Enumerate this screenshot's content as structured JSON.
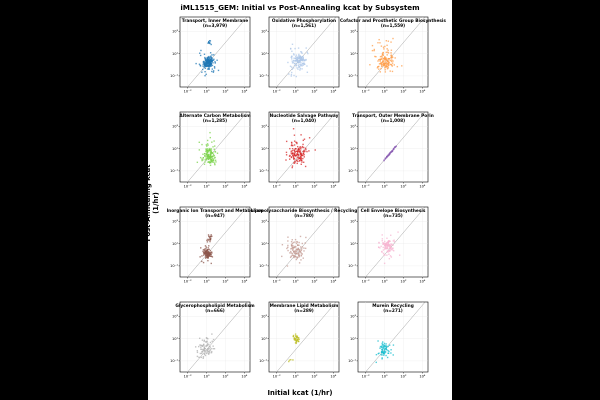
{
  "figure": {
    "title": "iML1515_GEM: Initial vs Post-Annealing kcat by Subsystem",
    "xlabel": "Initial kcat (1/hr)",
    "ylabel": "Post-Annealing kcat (1/hr)"
  },
  "chart_data": [
    {
      "type": "scatter",
      "title": "Transport, Inner Membrane",
      "subtitle": "(n=3,979)",
      "color": "#1f77b4",
      "xscale": "log",
      "yscale": "log",
      "xticks": [
        "10⁻²",
        "10⁰",
        "10²",
        "10⁴"
      ],
      "yticks": [
        "10³",
        "10¹",
        "10⁻¹"
      ],
      "diagonal": true,
      "grid": true,
      "clusters": [
        {
          "x": [
            0.3,
            8
          ],
          "y": [
            0.3,
            8
          ],
          "n": 140
        },
        {
          "x": [
            0.05,
            40
          ],
          "y": [
            0.05,
            40
          ],
          "n": 50
        },
        {
          "x": [
            1,
            5
          ],
          "y": [
            40,
            200
          ],
          "n": 10
        }
      ]
    },
    {
      "type": "scatter",
      "title": "Oxidative Phosphorylation",
      "subtitle": "(n=1,561)",
      "color": "#aec7e8",
      "xscale": "log",
      "yscale": "log",
      "xticks": [
        "10⁻²",
        "10⁰",
        "10²",
        "10⁴"
      ],
      "yticks": [
        "10³",
        "10¹",
        "10⁻¹"
      ],
      "diagonal": true,
      "grid": true,
      "clusters": [
        {
          "x": [
            0.3,
            20
          ],
          "y": [
            0.3,
            20
          ],
          "n": 90
        },
        {
          "x": [
            0.02,
            100
          ],
          "y": [
            0.02,
            200
          ],
          "n": 50
        }
      ]
    },
    {
      "type": "scatter",
      "title": "Cofactor and Prosthetic Group Biosynthesis",
      "subtitle": "(n=1,559)",
      "color": "#ff9e4a",
      "xscale": "log",
      "yscale": "log",
      "xticks": [
        "10⁻²",
        "10⁰",
        "10²",
        "10⁴"
      ],
      "yticks": [
        "10³",
        "10¹",
        "10⁻¹"
      ],
      "diagonal": true,
      "grid": true,
      "clusters": [
        {
          "x": [
            0.1,
            20
          ],
          "y": [
            0.1,
            20
          ],
          "n": 90
        },
        {
          "x": [
            0.01,
            100
          ],
          "y": [
            0.05,
            1000
          ],
          "n": 60
        }
      ]
    },
    {
      "type": "scatter",
      "title": "Alternate Carbon Metabolism",
      "subtitle": "(n=1,285)",
      "color": "#7bd34b",
      "xscale": "log",
      "yscale": "log",
      "xticks": [
        "10⁻²",
        "10⁰",
        "10²",
        "10⁴"
      ],
      "yticks": [
        "10³",
        "10¹",
        "10⁻¹"
      ],
      "diagonal": true,
      "grid": true,
      "clusters": [
        {
          "x": [
            0.2,
            20
          ],
          "y": [
            0.2,
            30
          ],
          "n": 100
        },
        {
          "x": [
            0.02,
            100
          ],
          "y": [
            0.05,
            500
          ],
          "n": 40
        }
      ]
    },
    {
      "type": "scatter",
      "title": "Nucleotide Salvage Pathway",
      "subtitle": "(n=1,040)",
      "color": "#d62728",
      "xscale": "log",
      "yscale": "log",
      "xticks": [
        "10⁻²",
        "10⁰",
        "10²",
        "10⁴"
      ],
      "yticks": [
        "10³",
        "10¹",
        "10⁻¹"
      ],
      "diagonal": true,
      "grid": true,
      "clusters": [
        {
          "x": [
            0.1,
            30
          ],
          "y": [
            0.1,
            100
          ],
          "n": 100
        },
        {
          "x": [
            0.01,
            200
          ],
          "y": [
            0.05,
            1000
          ],
          "n": 40
        }
      ]
    },
    {
      "type": "scatter",
      "title": "Transport, Outer Membrane Porin",
      "subtitle": "(n=1,008)",
      "color": "#8c5fb4",
      "xscale": "log",
      "yscale": "log",
      "xticks": [
        "10⁻²",
        "10⁰",
        "10²",
        "10⁴"
      ],
      "yticks": [
        "10³",
        "10¹",
        "10⁻¹"
      ],
      "diagonal": true,
      "grid": true,
      "clusters": [
        {
          "x": [
            0.5,
            30
          ],
          "y": [
            0.5,
            30
          ],
          "n": 60,
          "tight": true
        }
      ]
    },
    {
      "type": "scatter",
      "title": "Inorganic Ion Transport and Metabolism",
      "subtitle": "(n=947)",
      "color": "#8c564b",
      "xscale": "log",
      "yscale": "log",
      "xticks": [
        "10⁻²",
        "10⁰",
        "10²",
        "10⁴"
      ],
      "yticks": [
        "10³",
        "10¹",
        "10⁻¹"
      ],
      "diagonal": true,
      "grid": true,
      "clusters": [
        {
          "x": [
            0.3,
            5
          ],
          "y": [
            0.3,
            5
          ],
          "n": 90
        },
        {
          "x": [
            1,
            5
          ],
          "y": [
            10,
            100
          ],
          "n": 20
        },
        {
          "x": [
            0.05,
            20
          ],
          "y": [
            0.05,
            20
          ],
          "n": 20
        }
      ]
    },
    {
      "type": "scatter",
      "title": "Lipopolysaccharide Biosynthesis / Recycling",
      "subtitle": "(n=780)",
      "color": "#c49c94",
      "xscale": "log",
      "yscale": "log",
      "xticks": [
        "10⁻²",
        "10⁰",
        "10²",
        "10⁴"
      ],
      "yticks": [
        "10³",
        "10¹",
        "10⁻¹"
      ],
      "diagonal": true,
      "grid": true,
      "clusters": [
        {
          "x": [
            0.1,
            20
          ],
          "y": [
            0.1,
            50
          ],
          "n": 80
        },
        {
          "x": [
            0.01,
            100
          ],
          "y": [
            0.05,
            200
          ],
          "n": 30
        }
      ]
    },
    {
      "type": "scatter",
      "title": "Cell Envelope Biosynthesis",
      "subtitle": "(n=735)",
      "color": "#f7b6d2",
      "xscale": "log",
      "yscale": "log",
      "xticks": [
        "10⁻²",
        "10⁰",
        "10²",
        "10⁴"
      ],
      "yticks": [
        "10³",
        "10¹",
        "10⁻¹"
      ],
      "diagonal": true,
      "grid": true,
      "clusters": [
        {
          "x": [
            0.3,
            20
          ],
          "y": [
            0.5,
            100
          ],
          "n": 80
        },
        {
          "x": [
            0.02,
            100
          ],
          "y": [
            0.05,
            500
          ],
          "n": 30
        }
      ]
    },
    {
      "type": "scatter",
      "title": "Glycerophospholipid Metabolism",
      "subtitle": "(n=666)",
      "color": "#b0b0b0",
      "xscale": "log",
      "yscale": "log",
      "xticks": [
        "10⁻²",
        "10⁰",
        "10²",
        "10⁴"
      ],
      "yticks": [
        "10³",
        "10¹",
        "10⁻¹"
      ],
      "diagonal": true,
      "grid": true,
      "clusters": [
        {
          "x": [
            0.05,
            10
          ],
          "y": [
            0.05,
            30
          ],
          "n": 60
        },
        {
          "x": [
            0.01,
            50
          ],
          "y": [
            0.02,
            100
          ],
          "n": 20
        }
      ]
    },
    {
      "type": "scatter",
      "title": "Membrane Lipid Metabolism",
      "subtitle": "(n=289)",
      "color": "#bcbd22",
      "xscale": "log",
      "yscale": "log",
      "xticks": [
        "10⁻²",
        "10⁰",
        "10²",
        "10⁴"
      ],
      "yticks": [
        "10³",
        "10¹",
        "10⁻¹"
      ],
      "diagonal": true,
      "grid": true,
      "clusters": [
        {
          "x": [
            0.3,
            5
          ],
          "y": [
            3,
            30
          ],
          "n": 35
        },
        {
          "x": [
            0.1,
            1
          ],
          "y": [
            0.05,
            0.3
          ],
          "n": 4
        }
      ]
    },
    {
      "type": "scatter",
      "title": "Murein Recycling",
      "subtitle": "(n=271)",
      "color": "#17becf",
      "xscale": "log",
      "yscale": "log",
      "xticks": [
        "10⁻²",
        "10⁰",
        "10²",
        "10⁴"
      ],
      "yticks": [
        "10³",
        "10¹",
        "10⁻¹"
      ],
      "diagonal": true,
      "grid": true,
      "clusters": [
        {
          "x": [
            0.1,
            10
          ],
          "y": [
            0.1,
            10
          ],
          "n": 50
        },
        {
          "x": [
            0.02,
            50
          ],
          "y": [
            0.02,
            50
          ],
          "n": 20
        }
      ]
    }
  ]
}
